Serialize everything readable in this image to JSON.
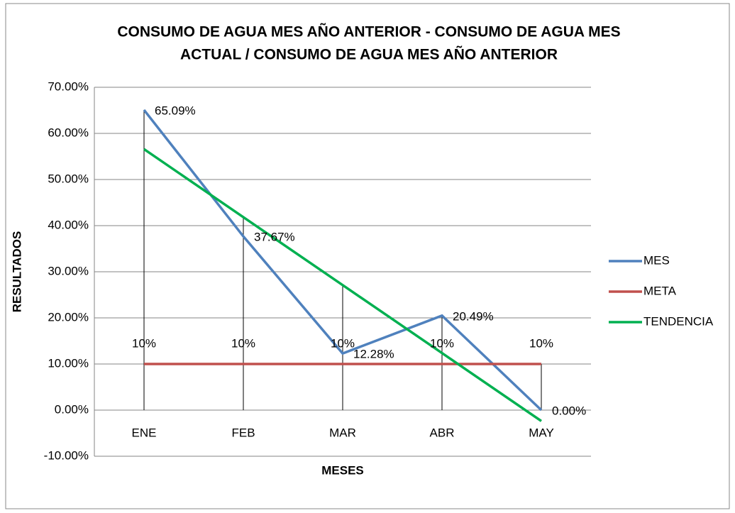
{
  "chart_data": {
    "type": "line",
    "title": [
      "CONSUMO DE AGUA MES AÑO ANTERIOR - CONSUMO DE AGUA MES",
      "ACTUAL / CONSUMO DE AGUA MES AÑO ANTERIOR"
    ],
    "x_label": "MESES",
    "y_label": "RESULTADOS",
    "categories": [
      "ENE",
      "FEB",
      "MAR",
      "ABR",
      "MAY"
    ],
    "series": [
      {
        "name": "MES",
        "color": "#4f81bd",
        "values": [
          65.09,
          37.67,
          12.28,
          20.49,
          0
        ],
        "value_labels": [
          "65.09%",
          "37.67%",
          "12.28%",
          "20.49%",
          "0.00%"
        ]
      },
      {
        "name": "META",
        "color": "#c0504d",
        "values": [
          10,
          10,
          10,
          10,
          10
        ],
        "value_labels": [
          "10%",
          "10%",
          "10%",
          "10%",
          "10%"
        ]
      },
      {
        "name": "TENDENCIA",
        "color": "#00b050",
        "values": [
          56.58,
          41.84,
          27.11,
          12.37,
          -2.37
        ]
      }
    ],
    "ylim": [
      -10,
      70
    ],
    "yticks": [
      {
        "value": -10,
        "label": "-10.00%"
      },
      {
        "value": 0,
        "label": "0.00%"
      },
      {
        "value": 10,
        "label": "10.00%"
      },
      {
        "value": 20,
        "label": "20.00%"
      },
      {
        "value": 30,
        "label": "30.00%"
      },
      {
        "value": 40,
        "label": "40.00%"
      },
      {
        "value": 50,
        "label": "50.00%"
      },
      {
        "value": 60,
        "label": "60.00%"
      },
      {
        "value": 70,
        "label": "70.00%"
      }
    ],
    "grid": true,
    "drop_lines": true,
    "legend": "right"
  }
}
